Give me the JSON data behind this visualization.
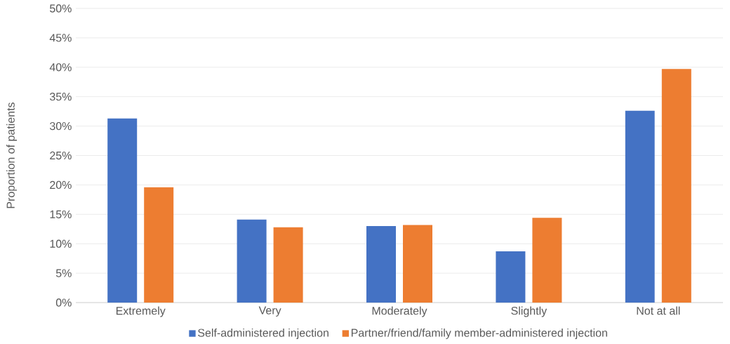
{
  "chart_data": {
    "type": "bar",
    "ylabel": "Proportion of patients",
    "categories": [
      "Extremely",
      "Very",
      "Moderately",
      "Slightly",
      "Not at all"
    ],
    "series": [
      {
        "name": "Self-administered injection",
        "color": "#4472c4",
        "values": [
          31.3,
          14.1,
          13.0,
          8.7,
          32.6
        ]
      },
      {
        "name": "Partner/friend/family member-administered injection",
        "color": "#ed7d31",
        "values": [
          19.6,
          12.8,
          13.2,
          14.4,
          39.7
        ]
      }
    ],
    "ylim": [
      0,
      50
    ],
    "yticks": [
      {
        "value": 0,
        "label": "0%"
      },
      {
        "value": 5,
        "label": "5%"
      },
      {
        "value": 10,
        "label": "10%"
      },
      {
        "value": 15,
        "label": "15%"
      },
      {
        "value": 20,
        "label": "20%"
      },
      {
        "value": 25,
        "label": "25%"
      },
      {
        "value": 30,
        "label": "30%"
      },
      {
        "value": 35,
        "label": "35%"
      },
      {
        "value": 40,
        "label": "40%"
      },
      {
        "value": 45,
        "label": "45%"
      },
      {
        "value": 50,
        "label": "50%"
      }
    ],
    "grid": "y",
    "legend": "bottom"
  }
}
